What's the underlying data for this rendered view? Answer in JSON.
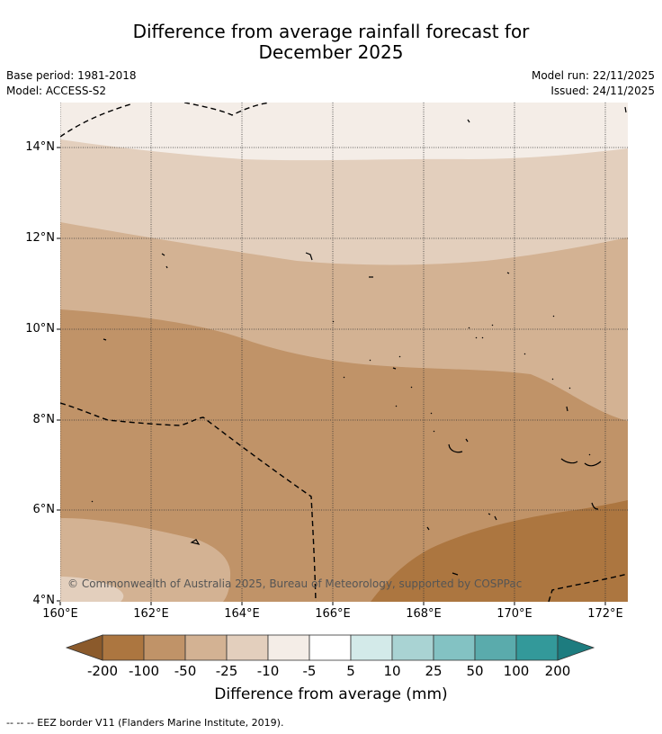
{
  "title": {
    "line1": "Difference from average rainfall forecast for",
    "line2": "December 2025"
  },
  "meta": {
    "base_period": "Base period: 1981-2018",
    "model": "Model: ACCESS-S2",
    "model_run": "Model run: 22/11/2025",
    "issued": "Issued: 24/11/2025"
  },
  "axes": {
    "longitudes": [
      "160°E",
      "162°E",
      "164°E",
      "166°E",
      "168°E",
      "170°E",
      "172°E"
    ],
    "latitudes": [
      "14°N",
      "12°N",
      "10°N",
      "8°N",
      "6°N",
      "4°N"
    ]
  },
  "copyright": "© Commonwealth of Australia 2025, Bureau of Meteorology, supported by COSPPac",
  "legend": {
    "title": "Difference from average (mm)",
    "labels": [
      "-200",
      "-100",
      "-50",
      "-25",
      "-10",
      "-5",
      "5",
      "10",
      "25",
      "50",
      "100",
      "200"
    ],
    "colors": [
      "#8b5a2b",
      "#ac7640",
      "#c09368",
      "#d3b293",
      "#e3cfbd",
      "#f4ede7",
      "#ffffff",
      "#d3eae9",
      "#a9d3d3",
      "#83c2c3",
      "#5aabac",
      "#33999a",
      "#1d7c7f"
    ]
  },
  "footnote": "-- -- -- EEZ border V11 (Flanders Marine Institute, 2019)."
}
